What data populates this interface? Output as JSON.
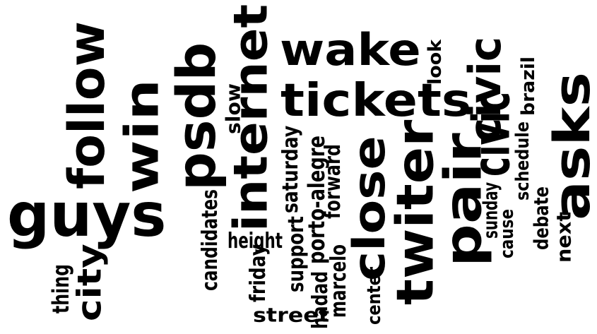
{
  "cloud": {
    "text_color": "#000000",
    "background_color": "#ffffff",
    "words": [
      {
        "id": "guys",
        "text": "guys",
        "vertical": false
      },
      {
        "id": "follow",
        "text": "follow",
        "vertical": true
      },
      {
        "id": "win",
        "text": "win",
        "vertical": true
      },
      {
        "id": "psdb",
        "text": "psdb",
        "vertical": true
      },
      {
        "id": "internet",
        "text": "internet",
        "vertical": true
      },
      {
        "id": "wake",
        "text": "wake",
        "vertical": false
      },
      {
        "id": "tickets",
        "text": "tickets",
        "vertical": false
      },
      {
        "id": "close",
        "text": "close",
        "vertical": true
      },
      {
        "id": "twiter",
        "text": "twiter",
        "vertical": true
      },
      {
        "id": "pair",
        "text": "pair",
        "vertical": true
      },
      {
        "id": "civic-upper",
        "text": "civic",
        "vertical": true
      },
      {
        "id": "civic-lower",
        "text": "civic",
        "vertical": true
      },
      {
        "id": "asks",
        "text": "asks",
        "vertical": true
      },
      {
        "id": "city",
        "text": "city",
        "vertical": true
      },
      {
        "id": "thing",
        "text": "thing",
        "vertical": true
      },
      {
        "id": "candidates",
        "text": "candidates",
        "vertical": true
      },
      {
        "id": "height",
        "text": "height",
        "vertical": false
      },
      {
        "id": "slow",
        "text": "slow",
        "vertical": true
      },
      {
        "id": "friday",
        "text": "friday",
        "vertical": true
      },
      {
        "id": "street",
        "text": "street",
        "vertical": false
      },
      {
        "id": "saturday",
        "text": "saturday",
        "vertical": true
      },
      {
        "id": "support",
        "text": "support",
        "vertical": true
      },
      {
        "id": "porto-alegre",
        "text": "porto-alegre",
        "vertical": true
      },
      {
        "id": "hadad",
        "text": "hadad",
        "vertical": true
      },
      {
        "id": "forward",
        "text": "forward",
        "vertical": true
      },
      {
        "id": "marcelo",
        "text": "marcelo",
        "vertical": true
      },
      {
        "id": "center",
        "text": "center",
        "vertical": true
      },
      {
        "id": "look",
        "text": "look",
        "vertical": true
      },
      {
        "id": "sunday",
        "text": "sunday",
        "vertical": true
      },
      {
        "id": "cause",
        "text": "cause",
        "vertical": true
      },
      {
        "id": "schedule",
        "text": "schedule",
        "vertical": true
      },
      {
        "id": "brazil",
        "text": "brazil",
        "vertical": true
      },
      {
        "id": "debate",
        "text": "debate",
        "vertical": true
      },
      {
        "id": "next",
        "text": "next",
        "vertical": true
      }
    ]
  }
}
